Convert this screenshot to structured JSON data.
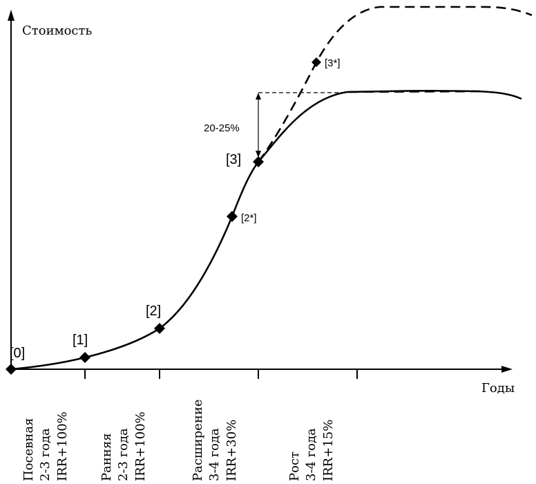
{
  "axes": {
    "y_label": "Стоимость",
    "x_label": "Годы"
  },
  "points": [
    {
      "id": "p0",
      "label": "[0]"
    },
    {
      "id": "p1",
      "label": "[1]"
    },
    {
      "id": "p2",
      "label": "[2]"
    },
    {
      "id": "p3",
      "label": "[3]"
    },
    {
      "id": "p2s",
      "label": "[2*]"
    },
    {
      "id": "p3s",
      "label": "[3*]"
    }
  ],
  "gap_label": "20-25%",
  "stages": [
    {
      "name": "Посевная",
      "duration": "2-3 года",
      "irr": "IRR+100%"
    },
    {
      "name": "Ранняя",
      "duration": "2-3 года",
      "irr": "IRR+100%"
    },
    {
      "name": "Расширение",
      "duration": "3-4 года",
      "irr": "IRR+30%"
    },
    {
      "name": "Рост",
      "duration": "3-4 года",
      "irr": "IRR+15%"
    }
  ]
}
